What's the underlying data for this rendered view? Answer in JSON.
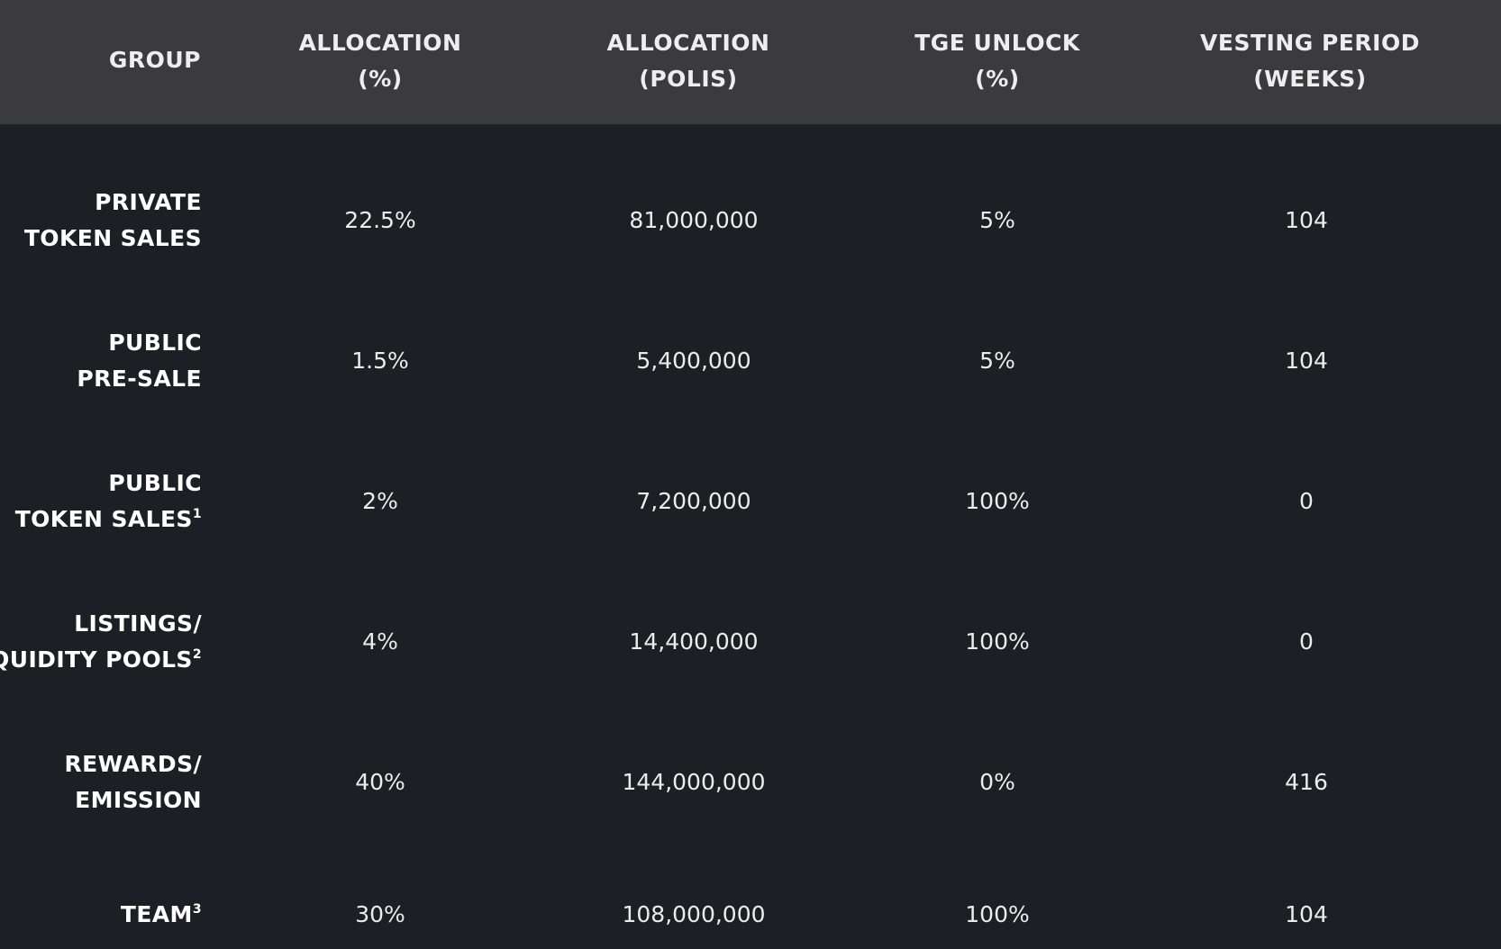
{
  "header": {
    "group": "GROUP",
    "alloc_pct": [
      "ALLOCATION",
      "(%)"
    ],
    "alloc_polis": [
      "ALLOCATION",
      "(POLIS)"
    ],
    "tge_unlock": [
      "TGE UNLOCK",
      "(%)"
    ],
    "vesting": [
      "VESTING PERIOD",
      "(WEEKS)"
    ]
  },
  "rows": [
    {
      "group": [
        "PRIVATE",
        "TOKEN SALES"
      ],
      "sup": "",
      "alloc_pct": "22.5%",
      "alloc_polis": "81,000,000",
      "tge_unlock": "5%",
      "vesting": "104"
    },
    {
      "group": [
        "PUBLIC",
        "PRE-SALE"
      ],
      "sup": "",
      "alloc_pct": "1.5%",
      "alloc_polis": "5,400,000",
      "tge_unlock": "5%",
      "vesting": "104"
    },
    {
      "group": [
        "PUBLIC",
        "TOKEN SALES"
      ],
      "sup": "1",
      "alloc_pct": "2%",
      "alloc_polis": "7,200,000",
      "tge_unlock": "100%",
      "vesting": "0"
    },
    {
      "group": [
        "LISTINGS/",
        "LIQUIDITY POOLS"
      ],
      "sup": "2",
      "alloc_pct": "4%",
      "alloc_polis": "14,400,000",
      "tge_unlock": "100%",
      "vesting": "0"
    },
    {
      "group": [
        "REWARDS/",
        "EMISSION"
      ],
      "sup": "",
      "alloc_pct": "40%",
      "alloc_polis": "144,000,000",
      "tge_unlock": "0%",
      "vesting": "416"
    },
    {
      "group": [
        "TEAM"
      ],
      "sup": "3",
      "alloc_pct": "30%",
      "alloc_polis": "108,000,000",
      "tge_unlock": "100%",
      "vesting": "104"
    }
  ]
}
